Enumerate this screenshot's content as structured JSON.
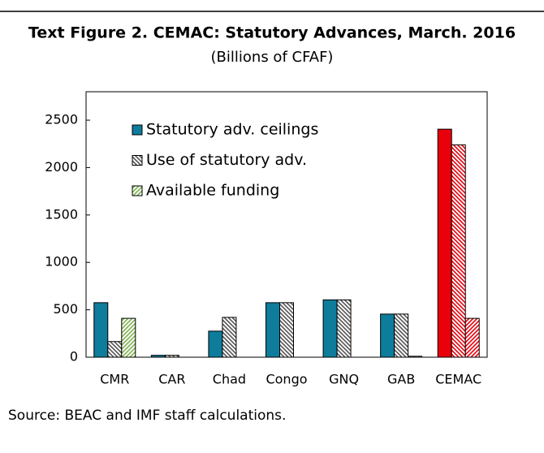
{
  "chart_data": {
    "type": "bar",
    "title": "Text Figure 2. CEMAC: Statutory Advances, March. 2016",
    "subtitle": "(Billions of CFAF)",
    "source": "Source: BEAC and IMF staff calculations.",
    "categories": [
      "CMR",
      "CAR",
      "Chad",
      "Congo",
      "GNQ",
      "GAB",
      "CEMAC"
    ],
    "series": [
      {
        "name": "Statutory adv. ceilings",
        "fill": "solid",
        "colors": [
          "#0e7c9b",
          "#0e7c9b",
          "#0e7c9b",
          "#0e7c9b",
          "#0e7c9b",
          "#0e7c9b",
          "#e8000b"
        ],
        "values": [
          575,
          20,
          275,
          575,
          605,
          455,
          2405
        ]
      },
      {
        "name": "Use of statutory adv.",
        "fill": "hatch-back",
        "colors": [
          "#555555",
          "#555555",
          "#555555",
          "#555555",
          "#555555",
          "#555555",
          "#e8000b"
        ],
        "values": [
          165,
          20,
          420,
          575,
          605,
          455,
          2240
        ]
      },
      {
        "name": "Available funding",
        "fill": "hatch-forward",
        "colors": [
          "#7fb24f",
          "#7fb24f",
          "#7fb24f",
          "#7fb24f",
          "#7fb24f",
          "#7fb24f",
          "#e8000b"
        ],
        "values": [
          410,
          0,
          0,
          0,
          0,
          10,
          410
        ]
      }
    ],
    "ylim": [
      0,
      2800
    ],
    "yticks": [
      0,
      500,
      1000,
      1500,
      2000,
      2500
    ],
    "legend": "upper left",
    "title_color": "#0e7c9b"
  }
}
